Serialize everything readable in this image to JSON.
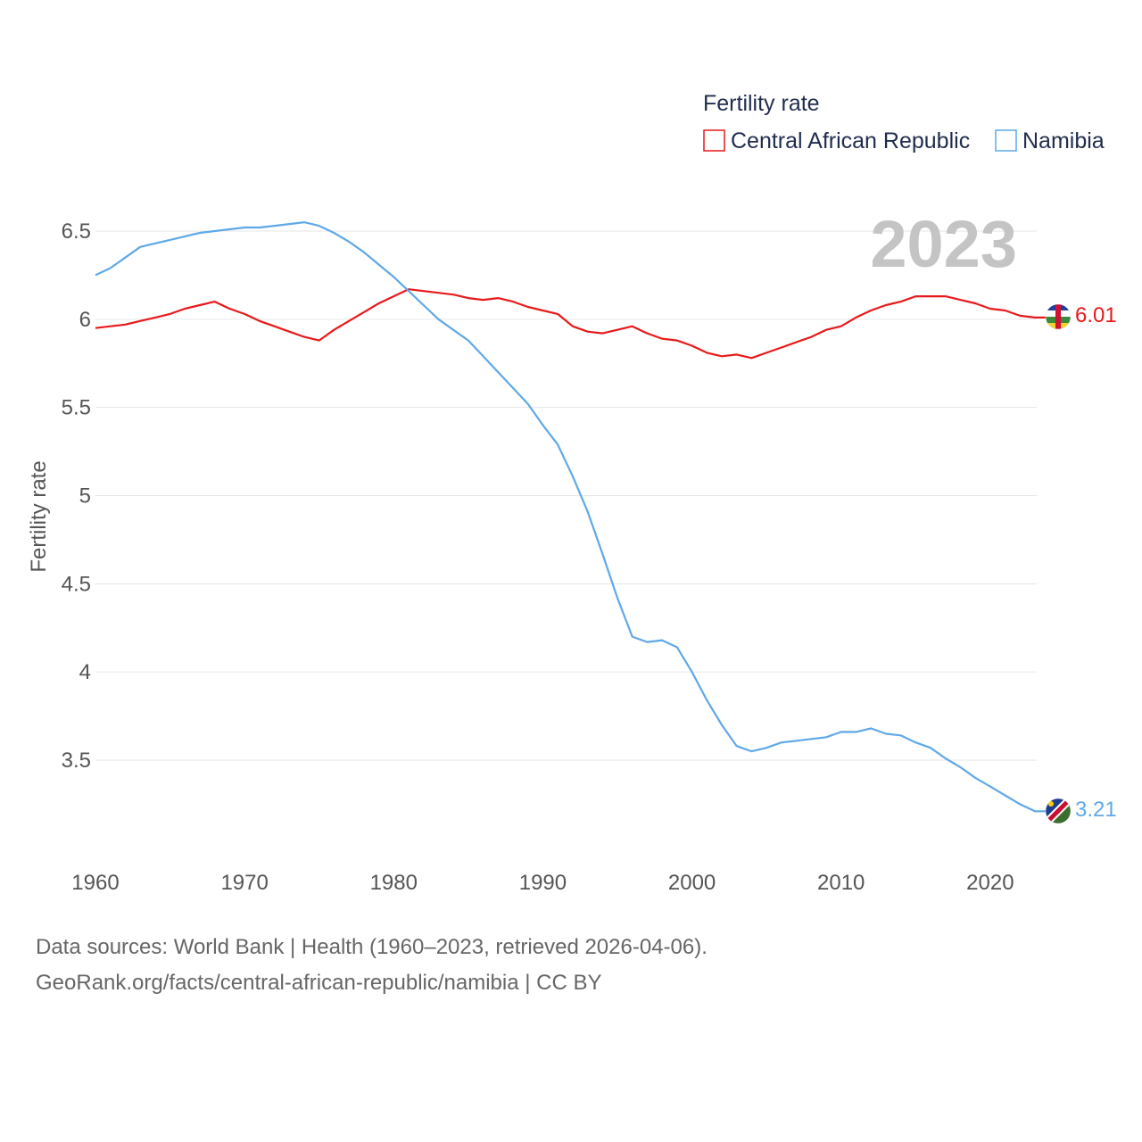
{
  "chart_data": {
    "type": "line",
    "ylabel": "Fertility rate",
    "legend_title": "Fertility rate",
    "highlight_year": "2023",
    "xlim": [
      1960,
      2023
    ],
    "ylim": [
      3.0,
      6.7
    ],
    "x_ticks": [
      1960,
      1970,
      1980,
      1990,
      2000,
      2010,
      2020
    ],
    "y_ticks": [
      3.5,
      4,
      4.5,
      5,
      5.5,
      6,
      6.5
    ],
    "x": [
      1960,
      1961,
      1962,
      1963,
      1964,
      1965,
      1966,
      1967,
      1968,
      1969,
      1970,
      1971,
      1972,
      1973,
      1974,
      1975,
      1976,
      1977,
      1978,
      1979,
      1980,
      1981,
      1982,
      1983,
      1984,
      1985,
      1986,
      1987,
      1988,
      1989,
      1990,
      1991,
      1992,
      1993,
      1994,
      1995,
      1996,
      1997,
      1998,
      1999,
      2000,
      2001,
      2002,
      2003,
      2004,
      2005,
      2006,
      2007,
      2008,
      2009,
      2010,
      2011,
      2012,
      2013,
      2014,
      2015,
      2016,
      2017,
      2018,
      2019,
      2020,
      2021,
      2022,
      2023
    ],
    "series": [
      {
        "name": "Central African Republic",
        "color": "#e8191b",
        "end_label": "6.01",
        "values": [
          5.95,
          5.96,
          5.97,
          5.99,
          6.01,
          6.03,
          6.06,
          6.08,
          6.1,
          6.06,
          6.03,
          5.99,
          5.96,
          5.93,
          5.9,
          5.88,
          5.94,
          5.99,
          6.04,
          6.09,
          6.13,
          6.17,
          6.16,
          6.15,
          6.14,
          6.12,
          6.11,
          6.12,
          6.1,
          6.07,
          6.05,
          6.03,
          5.96,
          5.93,
          5.92,
          5.94,
          5.96,
          5.92,
          5.89,
          5.88,
          5.85,
          5.81,
          5.79,
          5.8,
          5.78,
          5.81,
          5.84,
          5.87,
          5.9,
          5.94,
          5.96,
          6.01,
          6.05,
          6.08,
          6.1,
          6.13,
          6.13,
          6.13,
          6.11,
          6.09,
          6.06,
          6.05,
          6.02,
          6.01
        ]
      },
      {
        "name": "Namibia",
        "color": "#5fa8e8",
        "end_label": "3.21",
        "values": [
          6.25,
          6.29,
          6.35,
          6.41,
          6.43,
          6.45,
          6.47,
          6.49,
          6.5,
          6.51,
          6.52,
          6.52,
          6.53,
          6.54,
          6.55,
          6.53,
          6.49,
          6.44,
          6.38,
          6.31,
          6.24,
          6.16,
          6.08,
          6.0,
          5.94,
          5.88,
          5.79,
          5.7,
          5.61,
          5.52,
          5.4,
          5.29,
          5.11,
          4.91,
          4.67,
          4.42,
          4.2,
          4.17,
          4.18,
          4.14,
          4.0,
          3.84,
          3.7,
          3.58,
          3.55,
          3.57,
          3.6,
          3.61,
          3.62,
          3.63,
          3.66,
          3.66,
          3.68,
          3.65,
          3.64,
          3.6,
          3.57,
          3.51,
          3.46,
          3.4,
          3.35,
          3.3,
          3.25,
          3.21
        ]
      }
    ]
  },
  "source": {
    "line1": "Data sources: World Bank | Health (1960–2023, retrieved 2026-04-06).",
    "line2": "GeoRank.org/facts/central-african-republic/namibia | CC BY"
  },
  "flags": {
    "car": "central-african-republic-flag-icon",
    "namibia": "namibia-flag-icon"
  }
}
